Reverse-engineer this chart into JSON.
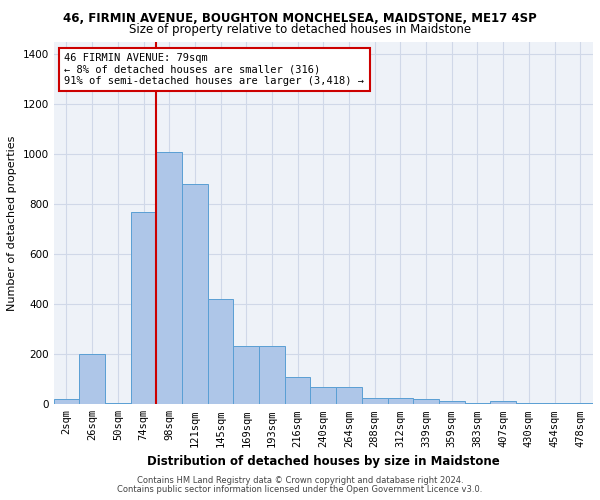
{
  "title1": "46, FIRMIN AVENUE, BOUGHTON MONCHELSEA, MAIDSTONE, ME17 4SP",
  "title2": "Size of property relative to detached houses in Maidstone",
  "xlabel": "Distribution of detached houses by size in Maidstone",
  "ylabel": "Number of detached properties",
  "footnote1": "Contains HM Land Registry data © Crown copyright and database right 2024.",
  "footnote2": "Contains public sector information licensed under the Open Government Licence v3.0.",
  "bar_labels": [
    "2sqm",
    "26sqm",
    "50sqm",
    "74sqm",
    "98sqm",
    "121sqm",
    "145sqm",
    "169sqm",
    "193sqm",
    "216sqm",
    "240sqm",
    "264sqm",
    "288sqm",
    "312sqm",
    "339sqm",
    "359sqm",
    "383sqm",
    "407sqm",
    "430sqm",
    "454sqm",
    "478sqm"
  ],
  "bar_values": [
    20,
    200,
    5,
    770,
    1010,
    880,
    420,
    235,
    235,
    110,
    70,
    70,
    25,
    25,
    20,
    15,
    5,
    15,
    5,
    5,
    5
  ],
  "bar_color": "#aec6e8",
  "bar_edge_color": "#5a9fd4",
  "grid_color": "#d0d8e8",
  "bg_color": "#eef2f8",
  "vline_x": 3.5,
  "vline_color": "#cc0000",
  "annotation_line1": "46 FIRMIN AVENUE: 79sqm",
  "annotation_line2": "← 8% of detached houses are smaller (316)",
  "annotation_line3": "91% of semi-detached houses are larger (3,418) →",
  "annotation_box_color": "#cc0000",
  "ylim": [
    0,
    1450
  ],
  "yticks": [
    0,
    200,
    400,
    600,
    800,
    1000,
    1200,
    1400
  ],
  "title1_fontsize": 8.5,
  "title2_fontsize": 8.5,
  "xlabel_fontsize": 8.5,
  "ylabel_fontsize": 8.0,
  "tick_fontsize": 7.5,
  "annot_fontsize": 7.5,
  "footnote_fontsize": 6.0
}
